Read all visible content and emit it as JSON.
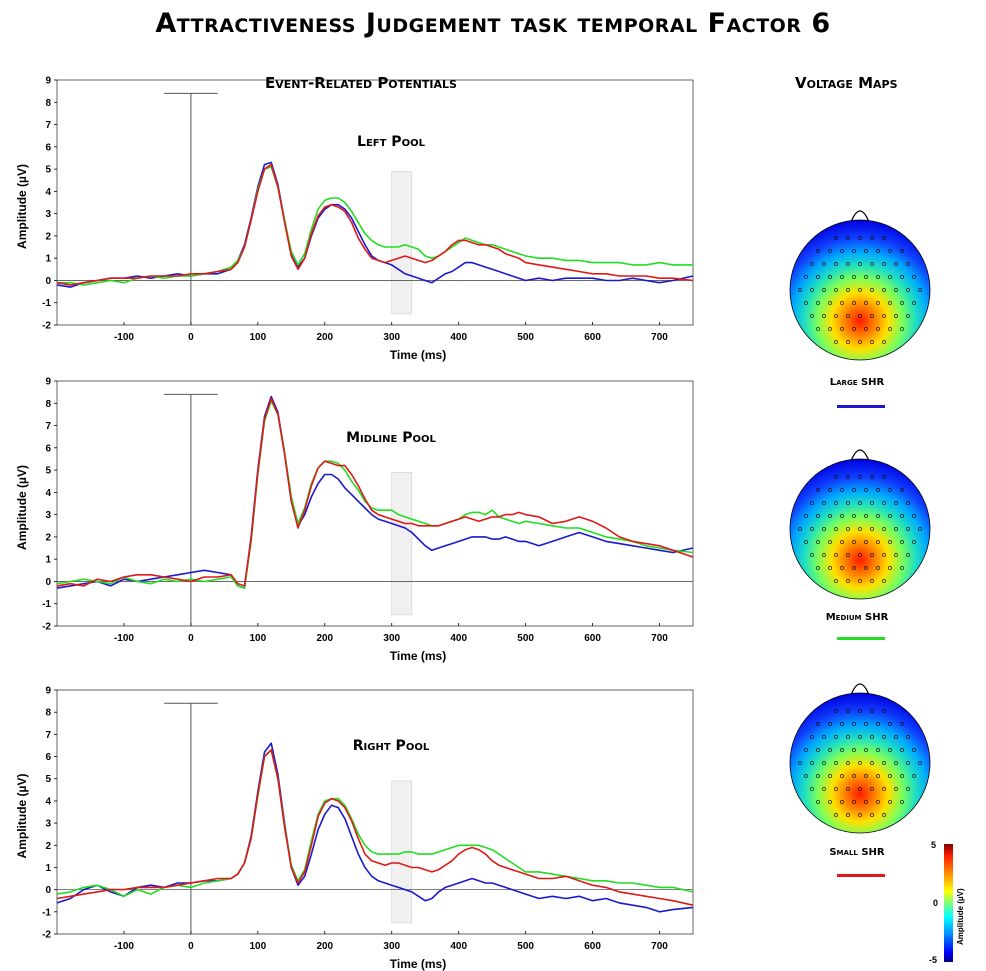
{
  "title": "Attractiveness Judgement task temporal Factor 6",
  "erp_heading": "Event-Related Potentials",
  "maps_heading": "Voltage Maps",
  "colors": {
    "large": "#1a1acc",
    "medium": "#22dd22",
    "small": "#e01818",
    "axis": "#000000",
    "window": "#e6e6e6"
  },
  "chart_data": [
    {
      "type": "line",
      "panel_title": "Left Pool",
      "xlabel": "Time (ms)",
      "ylabel": "Amplitude (µV)",
      "xlim": [
        -200,
        750
      ],
      "ylim": [
        -2,
        9
      ],
      "xticks": [
        "-100",
        "0",
        "100",
        "200",
        "300",
        "400",
        "500",
        "600",
        "700"
      ],
      "yticks": [
        "-2",
        "-1",
        "0",
        "1",
        "2",
        "3",
        "4",
        "5",
        "6",
        "7",
        "8",
        "9"
      ],
      "x": [
        -200,
        -180,
        -160,
        -140,
        -120,
        -100,
        -80,
        -60,
        -40,
        -20,
        0,
        20,
        40,
        60,
        70,
        80,
        90,
        100,
        110,
        120,
        130,
        140,
        150,
        160,
        170,
        180,
        190,
        200,
        210,
        220,
        230,
        240,
        250,
        260,
        270,
        280,
        290,
        300,
        310,
        320,
        330,
        340,
        350,
        360,
        370,
        380,
        390,
        400,
        410,
        420,
        430,
        440,
        450,
        460,
        470,
        480,
        490,
        500,
        520,
        540,
        560,
        580,
        600,
        620,
        640,
        660,
        680,
        700,
        720,
        750
      ],
      "series": [
        {
          "name": "Large SHR",
          "values": [
            -0.2,
            -0.3,
            -0.1,
            0.0,
            0.1,
            0.1,
            0.2,
            0.1,
            0.2,
            0.3,
            0.2,
            0.3,
            0.3,
            0.5,
            0.9,
            1.6,
            2.8,
            4.2,
            5.2,
            5.3,
            4.3,
            2.7,
            1.2,
            0.6,
            1.0,
            2.0,
            2.8,
            3.2,
            3.4,
            3.4,
            3.2,
            2.8,
            2.2,
            1.6,
            1.1,
            0.9,
            0.8,
            0.7,
            0.5,
            0.3,
            0.2,
            0.1,
            0.0,
            -0.1,
            0.1,
            0.3,
            0.4,
            0.6,
            0.8,
            0.8,
            0.7,
            0.6,
            0.5,
            0.4,
            0.3,
            0.2,
            0.1,
            0.0,
            0.1,
            0.0,
            0.1,
            0.1,
            0.1,
            0.0,
            0.0,
            0.1,
            0.0,
            -0.1,
            0.0,
            0.2
          ]
        },
        {
          "name": "Medium SHR",
          "values": [
            -0.1,
            -0.1,
            -0.2,
            -0.1,
            0.0,
            -0.1,
            0.1,
            0.2,
            0.1,
            0.2,
            0.2,
            0.3,
            0.4,
            0.6,
            0.9,
            1.5,
            2.7,
            4.1,
            5.0,
            5.1,
            4.2,
            2.7,
            1.3,
            0.7,
            1.2,
            2.3,
            3.2,
            3.6,
            3.7,
            3.7,
            3.5,
            3.1,
            2.6,
            2.1,
            1.8,
            1.6,
            1.5,
            1.5,
            1.5,
            1.6,
            1.5,
            1.4,
            1.1,
            1.0,
            1.1,
            1.3,
            1.5,
            1.7,
            1.9,
            1.8,
            1.7,
            1.6,
            1.6,
            1.5,
            1.4,
            1.3,
            1.2,
            1.1,
            1.0,
            1.0,
            0.9,
            0.9,
            0.8,
            0.8,
            0.8,
            0.7,
            0.7,
            0.8,
            0.7,
            0.7
          ]
        },
        {
          "name": "Small SHR",
          "values": [
            -0.1,
            -0.2,
            -0.1,
            0.0,
            0.1,
            0.1,
            0.1,
            0.2,
            0.2,
            0.2,
            0.3,
            0.3,
            0.4,
            0.5,
            0.8,
            1.5,
            2.7,
            4.0,
            5.0,
            5.2,
            4.2,
            2.6,
            1.1,
            0.5,
            1.0,
            2.1,
            2.9,
            3.3,
            3.4,
            3.3,
            3.1,
            2.6,
            1.9,
            1.4,
            1.0,
            0.9,
            0.8,
            0.9,
            1.0,
            1.1,
            1.0,
            0.9,
            0.8,
            0.9,
            1.1,
            1.3,
            1.6,
            1.8,
            1.8,
            1.7,
            1.6,
            1.6,
            1.5,
            1.4,
            1.2,
            1.1,
            1.0,
            0.8,
            0.7,
            0.6,
            0.5,
            0.4,
            0.3,
            0.3,
            0.2,
            0.2,
            0.2,
            0.1,
            0.1,
            0.0
          ]
        }
      ]
    },
    {
      "type": "line",
      "panel_title": "Midline Pool",
      "xlabel": "Time (ms)",
      "ylabel": "Amplitude (µV)",
      "xlim": [
        -200,
        750
      ],
      "ylim": [
        -2,
        9
      ],
      "xticks": [
        "-100",
        "0",
        "100",
        "200",
        "300",
        "400",
        "500",
        "600",
        "700"
      ],
      "yticks": [
        "-2",
        "-1",
        "0",
        "1",
        "2",
        "3",
        "4",
        "5",
        "6",
        "7",
        "8",
        "9"
      ],
      "x": [
        -200,
        -180,
        -160,
        -140,
        -120,
        -100,
        -80,
        -60,
        -40,
        -20,
        0,
        20,
        40,
        60,
        70,
        80,
        90,
        100,
        110,
        120,
        130,
        140,
        150,
        160,
        170,
        180,
        190,
        200,
        210,
        220,
        230,
        240,
        250,
        260,
        270,
        280,
        290,
        300,
        310,
        320,
        330,
        340,
        350,
        360,
        370,
        380,
        390,
        400,
        410,
        420,
        430,
        440,
        450,
        460,
        470,
        480,
        490,
        500,
        520,
        540,
        560,
        580,
        600,
        620,
        640,
        660,
        680,
        700,
        720,
        750
      ],
      "series": [
        {
          "name": "Large SHR",
          "values": [
            -0.3,
            -0.2,
            -0.1,
            0.0,
            -0.2,
            0.1,
            0.0,
            0.1,
            0.2,
            0.3,
            0.4,
            0.5,
            0.4,
            0.3,
            -0.2,
            -0.3,
            2.0,
            5.0,
            7.4,
            8.3,
            7.6,
            5.8,
            3.6,
            2.5,
            3.0,
            3.8,
            4.4,
            4.8,
            4.8,
            4.6,
            4.2,
            3.9,
            3.6,
            3.3,
            3.0,
            2.8,
            2.7,
            2.6,
            2.5,
            2.4,
            2.2,
            1.9,
            1.6,
            1.4,
            1.5,
            1.6,
            1.7,
            1.8,
            1.9,
            2.0,
            2.0,
            2.0,
            1.9,
            1.9,
            2.0,
            1.9,
            1.8,
            1.8,
            1.6,
            1.8,
            2.0,
            2.2,
            2.0,
            1.8,
            1.7,
            1.6,
            1.5,
            1.4,
            1.3,
            1.5
          ]
        },
        {
          "name": "Medium SHR",
          "values": [
            -0.1,
            0.0,
            0.1,
            0.0,
            -0.1,
            0.2,
            0.0,
            -0.1,
            0.1,
            0.0,
            0.1,
            0.0,
            0.1,
            0.2,
            -0.2,
            -0.3,
            1.8,
            4.8,
            7.2,
            8.1,
            7.5,
            5.8,
            3.8,
            2.6,
            3.3,
            4.4,
            5.1,
            5.4,
            5.4,
            5.3,
            5.0,
            4.5,
            4.1,
            3.6,
            3.3,
            3.2,
            3.2,
            3.2,
            3.0,
            2.9,
            2.8,
            2.7,
            2.6,
            2.5,
            2.5,
            2.6,
            2.7,
            2.8,
            3.0,
            3.1,
            3.1,
            3.0,
            3.2,
            2.9,
            2.8,
            2.7,
            2.6,
            2.7,
            2.6,
            2.5,
            2.4,
            2.4,
            2.2,
            2.0,
            1.9,
            1.8,
            1.6,
            1.5,
            1.4,
            1.3
          ]
        },
        {
          "name": "Small SHR",
          "values": [
            -0.2,
            -0.1,
            -0.2,
            0.1,
            0.0,
            0.2,
            0.3,
            0.3,
            0.2,
            0.1,
            0.0,
            0.2,
            0.2,
            0.3,
            -0.1,
            -0.2,
            1.9,
            4.9,
            7.3,
            8.2,
            7.5,
            5.7,
            3.6,
            2.4,
            3.2,
            4.3,
            5.1,
            5.4,
            5.3,
            5.2,
            5.2,
            4.8,
            4.3,
            3.7,
            3.2,
            3.0,
            2.9,
            2.8,
            2.7,
            2.6,
            2.6,
            2.5,
            2.5,
            2.5,
            2.5,
            2.6,
            2.7,
            2.8,
            2.9,
            2.8,
            2.7,
            2.8,
            2.9,
            2.9,
            3.0,
            3.0,
            3.1,
            3.0,
            2.9,
            2.6,
            2.7,
            2.9,
            2.7,
            2.4,
            2.0,
            1.8,
            1.7,
            1.6,
            1.4,
            1.1
          ]
        }
      ]
    },
    {
      "type": "line",
      "panel_title": "Right Pool",
      "xlabel": "Time (ms)",
      "ylabel": "Amplitude (µV)",
      "xlim": [
        -200,
        750
      ],
      "ylim": [
        -2,
        9
      ],
      "xticks": [
        "-100",
        "0",
        "100",
        "200",
        "300",
        "400",
        "500",
        "600",
        "700"
      ],
      "yticks": [
        "-2",
        "-1",
        "0",
        "1",
        "2",
        "3",
        "4",
        "5",
        "6",
        "7",
        "8",
        "9"
      ],
      "x": [
        -200,
        -180,
        -160,
        -140,
        -120,
        -100,
        -80,
        -60,
        -40,
        -20,
        0,
        20,
        40,
        60,
        70,
        80,
        90,
        100,
        110,
        120,
        130,
        140,
        150,
        160,
        170,
        180,
        190,
        200,
        210,
        220,
        230,
        240,
        250,
        260,
        270,
        280,
        290,
        300,
        310,
        320,
        330,
        340,
        350,
        360,
        370,
        380,
        390,
        400,
        410,
        420,
        430,
        440,
        450,
        460,
        470,
        480,
        490,
        500,
        520,
        540,
        560,
        580,
        600,
        620,
        640,
        660,
        680,
        700,
        720,
        750
      ],
      "series": [
        {
          "name": "Large SHR",
          "values": [
            -0.6,
            -0.4,
            0.0,
            0.2,
            -0.1,
            -0.3,
            0.1,
            0.2,
            0.1,
            0.3,
            0.3,
            0.4,
            0.4,
            0.5,
            0.7,
            1.2,
            2.4,
            4.4,
            6.2,
            6.6,
            5.2,
            3.0,
            1.0,
            0.2,
            0.6,
            1.6,
            2.7,
            3.4,
            3.8,
            3.7,
            3.2,
            2.4,
            1.6,
            1.0,
            0.6,
            0.4,
            0.3,
            0.2,
            0.1,
            0.0,
            -0.1,
            -0.3,
            -0.5,
            -0.4,
            -0.1,
            0.1,
            0.2,
            0.3,
            0.4,
            0.5,
            0.4,
            0.3,
            0.3,
            0.2,
            0.1,
            0.0,
            -0.1,
            -0.2,
            -0.4,
            -0.3,
            -0.4,
            -0.3,
            -0.5,
            -0.4,
            -0.6,
            -0.7,
            -0.8,
            -1.0,
            -0.9,
            -0.8
          ]
        },
        {
          "name": "Medium SHR",
          "values": [
            -0.2,
            -0.1,
            0.1,
            0.2,
            0.0,
            -0.3,
            0.0,
            -0.2,
            0.1,
            0.2,
            0.1,
            0.3,
            0.4,
            0.5,
            0.7,
            1.2,
            2.3,
            4.2,
            6.0,
            6.3,
            5.0,
            2.9,
            1.1,
            0.4,
            0.9,
            2.2,
            3.4,
            4.0,
            4.1,
            4.1,
            3.8,
            3.2,
            2.5,
            2.0,
            1.7,
            1.6,
            1.6,
            1.6,
            1.6,
            1.7,
            1.7,
            1.6,
            1.6,
            1.6,
            1.7,
            1.8,
            1.9,
            2.0,
            2.0,
            2.0,
            2.0,
            1.9,
            1.8,
            1.6,
            1.4,
            1.2,
            1.0,
            0.8,
            0.8,
            0.7,
            0.6,
            0.5,
            0.4,
            0.4,
            0.3,
            0.3,
            0.2,
            0.1,
            0.1,
            -0.1
          ]
        },
        {
          "name": "Small SHR",
          "values": [
            -0.4,
            -0.3,
            -0.2,
            -0.1,
            0.0,
            0.0,
            0.1,
            0.1,
            0.1,
            0.2,
            0.3,
            0.4,
            0.5,
            0.5,
            0.7,
            1.2,
            2.3,
            4.3,
            6.0,
            6.3,
            5.0,
            2.8,
            1.0,
            0.3,
            0.8,
            2.0,
            3.3,
            3.9,
            4.1,
            4.0,
            3.7,
            3.1,
            2.3,
            1.6,
            1.3,
            1.2,
            1.1,
            1.2,
            1.2,
            1.1,
            1.0,
            1.0,
            0.9,
            0.8,
            0.9,
            1.1,
            1.3,
            1.6,
            1.8,
            1.9,
            1.8,
            1.6,
            1.3,
            1.1,
            1.0,
            0.9,
            0.8,
            0.7,
            0.5,
            0.5,
            0.6,
            0.4,
            0.2,
            0.1,
            -0.1,
            -0.2,
            -0.3,
            -0.4,
            -0.5,
            -0.7
          ]
        }
      ]
    }
  ],
  "voltage_maps": [
    {
      "label": "Large SHR"
    },
    {
      "label": "Medium SHR"
    },
    {
      "label": "Small SHR"
    }
  ],
  "colorbar": {
    "title": "Amplitude (µV)",
    "ticks": [
      "5",
      "0",
      "-5"
    ]
  }
}
